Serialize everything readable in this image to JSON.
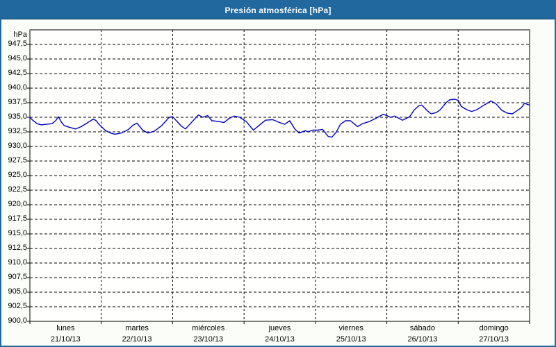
{
  "window": {
    "title": "Presión atmosférica [hPa]"
  },
  "colors": {
    "titlebar_bg": "#20689e",
    "titlebar_text": "#ffffff",
    "frame_border": "#20689e",
    "page_bg": "#fbfdf8",
    "plot_bg": "#fffffe",
    "grid": "#000000",
    "series_line": "#0000c0"
  },
  "chart_data": {
    "type": "line",
    "title": "Presión atmosférica [hPa]",
    "xlabel": "",
    "ylabel": "hPa",
    "ylim": [
      900,
      950
    ],
    "grid": "dashed",
    "legend_position": "none",
    "y_axis": {
      "label": "hPa",
      "tick_min": 900.0,
      "tick_max": 947.5,
      "tick_step": 2.5,
      "decimal_separator": ","
    },
    "x_axis": {
      "span_days": 7,
      "days": [
        {
          "name": "lunes",
          "date": "21/10/13"
        },
        {
          "name": "martes",
          "date": "22/10/13"
        },
        {
          "name": "miércoles",
          "date": "23/10/13"
        },
        {
          "name": "jueves",
          "date": "24/10/13"
        },
        {
          "name": "viernes",
          "date": "25/10/13"
        },
        {
          "name": "sábado",
          "date": "26/10/13"
        },
        {
          "name": "domingo",
          "date": "27/10/13"
        }
      ]
    },
    "series": [
      {
        "name": "Presión atmosférica",
        "color": "#0000c0",
        "points": [
          [
            0.0,
            935.0
          ],
          [
            0.04,
            934.5
          ],
          [
            0.1,
            933.9
          ],
          [
            0.16,
            933.7
          ],
          [
            0.23,
            933.8
          ],
          [
            0.31,
            933.9
          ],
          [
            0.36,
            934.4
          ],
          [
            0.4,
            935.1
          ],
          [
            0.44,
            934.2
          ],
          [
            0.48,
            933.6
          ],
          [
            0.55,
            933.3
          ],
          [
            0.64,
            933.0
          ],
          [
            0.72,
            933.4
          ],
          [
            0.81,
            934.1
          ],
          [
            0.89,
            934.7
          ],
          [
            0.93,
            934.4
          ],
          [
            0.96,
            933.9
          ],
          [
            1.06,
            932.7
          ],
          [
            1.13,
            932.3
          ],
          [
            1.19,
            932.1
          ],
          [
            1.28,
            932.3
          ],
          [
            1.38,
            932.9
          ],
          [
            1.44,
            933.6
          ],
          [
            1.5,
            934.0
          ],
          [
            1.58,
            932.8
          ],
          [
            1.65,
            932.3
          ],
          [
            1.74,
            932.6
          ],
          [
            1.84,
            933.5
          ],
          [
            1.9,
            934.3
          ],
          [
            1.95,
            935.0
          ],
          [
            2.0,
            935.1
          ],
          [
            2.06,
            934.3
          ],
          [
            2.12,
            933.5
          ],
          [
            2.18,
            933.0
          ],
          [
            2.27,
            934.2
          ],
          [
            2.36,
            935.4
          ],
          [
            2.42,
            935.0
          ],
          [
            2.49,
            935.3
          ],
          [
            2.55,
            934.4
          ],
          [
            2.64,
            934.3
          ],
          [
            2.72,
            934.1
          ],
          [
            2.79,
            934.8
          ],
          [
            2.86,
            935.2
          ],
          [
            2.94,
            935.0
          ],
          [
            3.0,
            934.5
          ],
          [
            3.03,
            934.3
          ],
          [
            3.13,
            932.8
          ],
          [
            3.2,
            933.5
          ],
          [
            3.3,
            934.5
          ],
          [
            3.4,
            934.6
          ],
          [
            3.5,
            934.1
          ],
          [
            3.57,
            933.8
          ],
          [
            3.64,
            934.4
          ],
          [
            3.71,
            933.0
          ],
          [
            3.77,
            932.3
          ],
          [
            3.86,
            932.7
          ],
          [
            3.9,
            932.5
          ],
          [
            3.96,
            932.8
          ],
          [
            4.03,
            932.8
          ],
          [
            4.1,
            932.9
          ],
          [
            4.18,
            931.7
          ],
          [
            4.23,
            931.6
          ],
          [
            4.29,
            932.4
          ],
          [
            4.35,
            933.8
          ],
          [
            4.42,
            934.4
          ],
          [
            4.49,
            934.4
          ],
          [
            4.59,
            933.4
          ],
          [
            4.66,
            933.9
          ],
          [
            4.76,
            934.3
          ],
          [
            4.86,
            934.9
          ],
          [
            4.95,
            935.5
          ],
          [
            5.0,
            935.3
          ],
          [
            5.05,
            935.0
          ],
          [
            5.11,
            935.2
          ],
          [
            5.22,
            934.5
          ],
          [
            5.32,
            935.1
          ],
          [
            5.38,
            936.2
          ],
          [
            5.45,
            937.0
          ],
          [
            5.49,
            937.1
          ],
          [
            5.56,
            936.2
          ],
          [
            5.62,
            935.6
          ],
          [
            5.69,
            935.8
          ],
          [
            5.75,
            936.3
          ],
          [
            5.83,
            937.5
          ],
          [
            5.88,
            938.0
          ],
          [
            5.95,
            938.1
          ],
          [
            6.0,
            937.9
          ],
          [
            6.04,
            936.9
          ],
          [
            6.08,
            936.6
          ],
          [
            6.12,
            936.3
          ],
          [
            6.19,
            936.0
          ],
          [
            6.26,
            936.3
          ],
          [
            6.35,
            937.0
          ],
          [
            6.42,
            937.5
          ],
          [
            6.46,
            937.8
          ],
          [
            6.53,
            937.3
          ],
          [
            6.61,
            936.2
          ],
          [
            6.69,
            935.7
          ],
          [
            6.76,
            935.6
          ],
          [
            6.82,
            936.1
          ],
          [
            6.88,
            936.6
          ],
          [
            6.93,
            937.4
          ],
          [
            6.97,
            937.2
          ],
          [
            7.0,
            937.1
          ]
        ]
      }
    ]
  }
}
